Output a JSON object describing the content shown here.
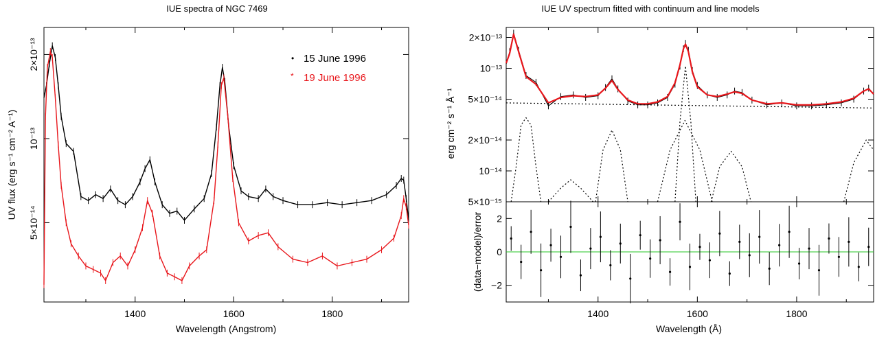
{
  "chart_data": [
    {
      "type": "line",
      "title": "IUE spectra of NGC 7469",
      "xlabel": "Wavelength (Angstrom)",
      "ylabel": "UV flux (erg s⁻¹ cm⁻² A⁻¹)",
      "xlim": [
        1215,
        1955
      ],
      "ylim": [
        2.6e-14,
        2.5e-13
      ],
      "yscale": "log",
      "x_ticks": [
        "1400",
        "1600",
        "1800"
      ],
      "y_ticks": [
        "5×10⁻¹⁴",
        "10⁻¹³",
        "2×10⁻¹³"
      ],
      "legend_position": "top-right",
      "series": [
        {
          "name": "15 June 1996",
          "color": "#000000",
          "x": [
            1215,
            1220,
            1226,
            1232,
            1238,
            1244,
            1250,
            1260,
            1275,
            1290,
            1305,
            1320,
            1335,
            1350,
            1365,
            1380,
            1395,
            1410,
            1420,
            1430,
            1440,
            1455,
            1470,
            1485,
            1500,
            1520,
            1540,
            1555,
            1565,
            1572,
            1577,
            1582,
            1590,
            1600,
            1615,
            1630,
            1650,
            1665,
            1680,
            1700,
            1730,
            1760,
            1790,
            1820,
            1850,
            1880,
            1910,
            1930,
            1940,
            1945,
            1950,
            1955
          ],
          "y": [
            1.4e-13,
            1.55e-13,
            1.85e-13,
            2.15e-13,
            1.95e-13,
            1.55e-13,
            1.2e-13,
            9.6e-14,
            9e-14,
            6.2e-14,
            6e-14,
            6.3e-14,
            6.1e-14,
            6.6e-14,
            6e-14,
            5.8e-14,
            6.2e-14,
            7e-14,
            7.8e-14,
            8.4e-14,
            7e-14,
            5.8e-14,
            5.4e-14,
            5.5e-14,
            5.1e-14,
            5.6e-14,
            6.1e-14,
            7.5e-14,
            1.1e-13,
            1.55e-13,
            1.8e-13,
            1.6e-13,
            1.1e-13,
            8e-14,
            6.5e-14,
            6.2e-14,
            6.1e-14,
            6.6e-14,
            6.2e-14,
            6e-14,
            5.8e-14,
            5.8e-14,
            5.9e-14,
            5.8e-14,
            5.9e-14,
            6e-14,
            6.3e-14,
            6.8e-14,
            7.2e-14,
            7.1e-14,
            6.1e-14,
            5.1e-14
          ]
        },
        {
          "name": "19 June 1996",
          "color": "#e8161b",
          "x": [
            1215,
            1218,
            1222,
            1228,
            1232,
            1238,
            1244,
            1250,
            1260,
            1270,
            1285,
            1300,
            1315,
            1330,
            1340,
            1355,
            1370,
            1385,
            1400,
            1415,
            1425,
            1435,
            1450,
            1465,
            1480,
            1495,
            1510,
            1530,
            1545,
            1560,
            1568,
            1575,
            1580,
            1588,
            1598,
            1610,
            1630,
            1650,
            1670,
            1690,
            1720,
            1750,
            1780,
            1810,
            1840,
            1870,
            1900,
            1925,
            1940,
            1945,
            1950,
            1955
          ],
          "y": [
            3e-14,
            1.2e-13,
            1.8e-13,
            2.05e-13,
            1.95e-13,
            1.4e-13,
            9.5e-14,
            6.8e-14,
            5e-14,
            4.2e-14,
            3.8e-14,
            3.5e-14,
            3.4e-14,
            3.3e-14,
            3.1e-14,
            3.6e-14,
            3.8e-14,
            3.5e-14,
            4e-14,
            4.8e-14,
            6e-14,
            5.4e-14,
            3.8e-14,
            3.3e-14,
            3.2e-14,
            3.1e-14,
            3.5e-14,
            3.8e-14,
            4e-14,
            6e-14,
            9.5e-14,
            1.55e-13,
            1.65e-13,
            1.2e-13,
            7.2e-14,
            5e-14,
            4.3e-14,
            4.5e-14,
            4.6e-14,
            4.1e-14,
            3.7e-14,
            3.6e-14,
            3.8e-14,
            3.5e-14,
            3.6e-14,
            3.7e-14,
            4e-14,
            4.4e-14,
            5.3e-14,
            6.1e-14,
            5.7e-14,
            4.9e-14
          ]
        }
      ]
    },
    {
      "type": "line",
      "title": "IUE UV spectrum fitted with continuum and line models",
      "xlabel": "Wavelength (Å)",
      "ylabel": "erg cm⁻² s⁻¹ Å⁻¹",
      "xlim": [
        1215,
        1955
      ],
      "ylim": [
        5e-15,
        2.5e-13
      ],
      "yscale": "log",
      "x_ticks": [
        "1400",
        "1600",
        "1800"
      ],
      "y_ticks": [
        "5×10⁻¹⁵",
        "10⁻¹⁴",
        "2×10⁻¹⁴",
        "5×10⁻¹⁴",
        "10⁻¹³",
        "2×10⁻¹³"
      ],
      "series": [
        {
          "color": "#000000",
          "x": [
            1215,
            1222,
            1230,
            1240,
            1255,
            1275,
            1300,
            1325,
            1350,
            1375,
            1400,
            1415,
            1428,
            1440,
            1460,
            1480,
            1500,
            1520,
            1540,
            1555,
            1565,
            1572,
            1576,
            1582,
            1590,
            1600,
            1620,
            1640,
            1660,
            1675,
            1690,
            1710,
            1740,
            1770,
            1800,
            1830,
            1860,
            1890,
            1915,
            1935,
            1945,
            1955
          ],
          "y": [
            1.1e-13,
            1.45e-13,
            2.2e-13,
            1.5e-13,
            8.5e-14,
            7.3e-14,
            4.3e-14,
            5.3e-14,
            5.5e-14,
            5.2e-14,
            5.4e-14,
            6.5e-14,
            7.9e-14,
            6.3e-14,
            4.8e-14,
            4.4e-14,
            4.4e-14,
            4.6e-14,
            5.2e-14,
            7e-14,
            1.05e-13,
            1.55e-13,
            1.75e-13,
            1.5e-13,
            9.5e-14,
            6.8e-14,
            5.5e-14,
            5.2e-14,
            5.5e-14,
            6e-14,
            5.8e-14,
            4.9e-14,
            4.4e-14,
            4.6e-14,
            4.3e-14,
            4.3e-14,
            4.4e-14,
            4.6e-14,
            5e-14,
            6e-14,
            6.4e-14,
            5.6e-14
          ]
        },
        {
          "color": "#e8161b",
          "x": [
            1215,
            1222,
            1230,
            1240,
            1255,
            1275,
            1300,
            1325,
            1350,
            1375,
            1400,
            1415,
            1428,
            1440,
            1460,
            1480,
            1500,
            1520,
            1540,
            1555,
            1565,
            1572,
            1576,
            1582,
            1590,
            1600,
            1620,
            1640,
            1660,
            1675,
            1690,
            1710,
            1740,
            1770,
            1800,
            1830,
            1860,
            1890,
            1915,
            1935,
            1945,
            1955
          ],
          "y": [
            1.12e-13,
            1.4e-13,
            2.15e-13,
            1.45e-13,
            8.3e-14,
            7e-14,
            4.6e-14,
            5.2e-14,
            5.4e-14,
            5.3e-14,
            5.5e-14,
            6.4e-14,
            7.6e-14,
            6.2e-14,
            4.9e-14,
            4.5e-14,
            4.5e-14,
            4.7e-14,
            5.3e-14,
            7.2e-14,
            1.08e-13,
            1.55e-13,
            1.72e-13,
            1.45e-13,
            9.2e-14,
            6.6e-14,
            5.5e-14,
            5.3e-14,
            5.6e-14,
            5.9e-14,
            5.7e-14,
            4.9e-14,
            4.5e-14,
            4.6e-14,
            4.4e-14,
            4.4e-14,
            4.5e-14,
            4.7e-14,
            5.1e-14,
            6e-14,
            6.3e-14,
            5.6e-14
          ]
        },
        {
          "color": "#000000",
          "x": [
            1215,
            1955
          ],
          "y": [
            4.6e-14,
            4.1e-14
          ]
        },
        {
          "color": "#000000",
          "x": [
            1225,
            1235,
            1245,
            1255,
            1265,
            1275,
            1285
          ],
          "y": [
            5e-15,
            1.1e-14,
            2.8e-14,
            3.3e-14,
            2.8e-14,
            1.1e-14,
            5e-15
          ]
        },
        {
          "color": "#000000",
          "x": [
            1300,
            1325,
            1345,
            1365,
            1390
          ],
          "y": [
            5e-15,
            6.8e-15,
            8.2e-15,
            6.8e-15,
            5e-15
          ]
        },
        {
          "color": "#000000",
          "x": [
            1395,
            1410,
            1428,
            1445,
            1460
          ],
          "y": [
            5e-15,
            1.6e-14,
            2.5e-14,
            1.6e-14,
            5e-15
          ]
        },
        {
          "color": "#000000",
          "x": [
            1520,
            1545,
            1575,
            1605,
            1630
          ],
          "y": [
            5e-15,
            1.6e-14,
            3.1e-14,
            1.6e-14,
            5e-15
          ]
        },
        {
          "color": "#000000",
          "x": [
            1555,
            1565,
            1576,
            1587,
            1597
          ],
          "y": [
            5e-15,
            3e-14,
            1.05e-13,
            3e-14,
            5e-15
          ]
        },
        {
          "color": "#000000",
          "x": [
            1628,
            1645,
            1668,
            1690,
            1708
          ],
          "y": [
            5e-15,
            1.1e-14,
            1.55e-14,
            1.1e-14,
            5e-15
          ]
        },
        {
          "color": "#000000",
          "x": [
            1895,
            1915,
            1940,
            1955
          ],
          "y": [
            5e-15,
            1.2e-14,
            2e-14,
            1.6e-14
          ]
        }
      ]
    },
    {
      "type": "scatter",
      "title": "",
      "xlabel": "Wavelength (Å)",
      "ylabel": "(data−model)/error",
      "xlim": [
        1215,
        1955
      ],
      "ylim": [
        -3,
        3
      ],
      "x_ticks": [
        "1400",
        "1600",
        "1800"
      ],
      "y_ticks": [
        "−2",
        "0",
        "2"
      ],
      "zero_line_color": "#22c422",
      "series": [
        {
          "color": "#000000",
          "x": [
            1225,
            1245,
            1265,
            1285,
            1305,
            1325,
            1345,
            1365,
            1385,
            1405,
            1425,
            1445,
            1465,
            1485,
            1505,
            1525,
            1545,
            1565,
            1585,
            1605,
            1625,
            1645,
            1665,
            1685,
            1705,
            1725,
            1745,
            1765,
            1785,
            1805,
            1825,
            1845,
            1865,
            1885,
            1905,
            1925,
            1945
          ],
          "y": [
            0.8,
            -0.6,
            1.2,
            -1.1,
            0.4,
            -0.3,
            1.5,
            -1.4,
            0.2,
            0.9,
            -0.8,
            0.5,
            -1.6,
            1.0,
            -0.4,
            0.7,
            -1.2,
            1.8,
            -0.9,
            0.3,
            -0.5,
            1.1,
            -1.3,
            0.6,
            -0.2,
            0.9,
            -1.0,
            0.4,
            1.2,
            -0.7,
            0.2,
            -1.1,
            0.8,
            -0.3,
            0.6,
            -0.9,
            0.3
          ]
        }
      ]
    }
  ]
}
